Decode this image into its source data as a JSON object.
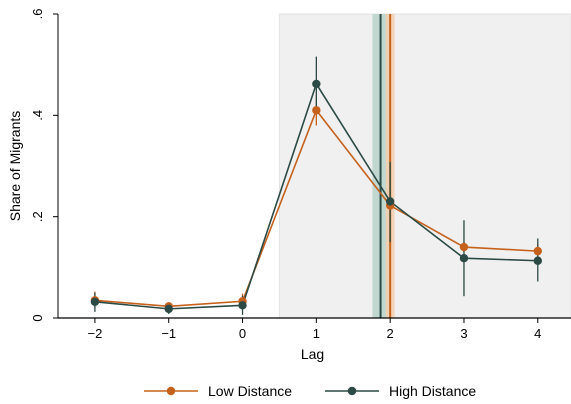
{
  "chart_data": {
    "type": "line",
    "xlabel": "Lag",
    "ylabel": "Share of Migrants",
    "xlim": [
      -2.5,
      4.45
    ],
    "ylim": [
      0,
      0.6
    ],
    "x_ticks": [
      {
        "value": -2,
        "label": "−2"
      },
      {
        "value": -1,
        "label": "−1"
      },
      {
        "value": 0,
        "label": "0"
      },
      {
        "value": 1,
        "label": "1"
      },
      {
        "value": 2,
        "label": "2"
      },
      {
        "value": 3,
        "label": "3"
      },
      {
        "value": 4,
        "label": "4"
      }
    ],
    "y_ticks": [
      {
        "value": 0,
        "label": "0"
      },
      {
        "value": 0.2,
        "label": ".2"
      },
      {
        "value": 0.4,
        "label": ".4"
      },
      {
        "value": 0.6,
        "label": ".6"
      }
    ],
    "x": [
      -2,
      -1,
      0,
      1,
      2,
      3,
      4
    ],
    "series": [
      {
        "name": "Low Distance",
        "color": "#c5611b",
        "values": [
          0.035,
          0.023,
          0.033,
          0.41,
          0.222,
          0.14,
          0.132
        ],
        "ci_low": [
          0.02,
          0.015,
          0.018,
          0.38,
          0.2,
          0.13,
          0.12
        ],
        "ci_high": [
          0.052,
          0.031,
          0.048,
          0.44,
          0.245,
          0.15,
          0.145
        ]
      },
      {
        "name": "High Distance",
        "color": "#2b4a45",
        "values": [
          0.032,
          0.018,
          0.025,
          0.462,
          0.23,
          0.118,
          0.113
        ],
        "ci_low": [
          0.012,
          0.008,
          0.006,
          0.41,
          0.15,
          0.043,
          0.072
        ],
        "ci_high": [
          0.05,
          0.028,
          0.044,
          0.516,
          0.308,
          0.193,
          0.157
        ]
      }
    ],
    "shaded_region": {
      "x_start": 0.5,
      "x_end": 4.45,
      "color": "#f0f0f0"
    },
    "vertical_lines": [
      {
        "series": "High Distance",
        "x": 1.87,
        "band": [
          1.76,
          1.98
        ],
        "line_color": "#2b4a45",
        "band_color": "#b7d3ca"
      },
      {
        "series": "Low Distance",
        "x": 2.0,
        "band": [
          1.94,
          2.06
        ],
        "line_color": "#c5611b",
        "band_color": "#f3cfae"
      }
    ],
    "legend": {
      "position": "bottom"
    },
    "grid": false
  }
}
